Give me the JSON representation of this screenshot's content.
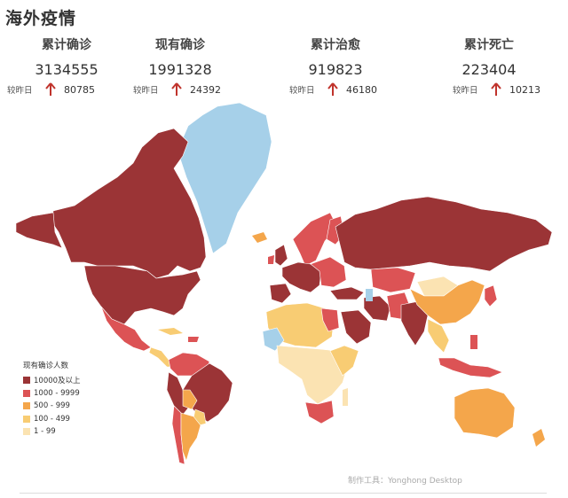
{
  "title": "海外疫情",
  "stats": [
    {
      "label": "累计确诊",
      "value": "3134555",
      "compare": "较昨日",
      "delta": "80785"
    },
    {
      "label": "现有确诊",
      "value": "1991328",
      "compare": "较昨日",
      "delta": "24392"
    },
    {
      "label": "累计治愈",
      "value": "919823",
      "compare": "较昨日",
      "delta": "46180"
    },
    {
      "label": "累计死亡",
      "value": "223404",
      "compare": "较昨日",
      "delta": "10213"
    }
  ],
  "legend": {
    "title": "现有确诊人数",
    "items": [
      {
        "label": "10000及以上",
        "color": "#9b3436"
      },
      {
        "label": "1000 - 9999",
        "color": "#dc5355"
      },
      {
        "label": "500 - 999",
        "color": "#f4a64b"
      },
      {
        "label": "100 - 499",
        "color": "#f8cc73"
      },
      {
        "label": "1 - 99",
        "color": "#fbe3b2"
      }
    ]
  },
  "colors": {
    "no_data": "#a6d0e9",
    "arrow": "#c0332c"
  },
  "footer": "制作工具：Yonghong Desktop"
}
